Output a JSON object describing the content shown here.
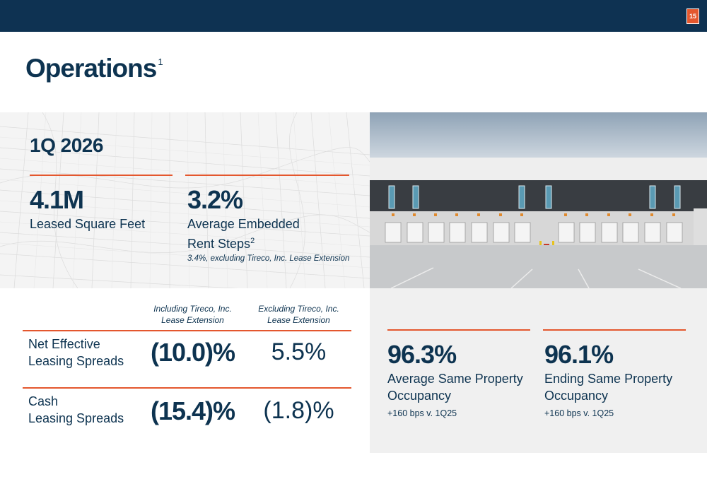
{
  "header": {
    "page_number": "15"
  },
  "title": {
    "text": "Operations",
    "footnote": "1"
  },
  "quarter": "1Q 2026",
  "kpis": [
    {
      "value": "4.1M",
      "label": "Leased Square Feet"
    },
    {
      "value": "3.2%",
      "label_line1": "Average Embedded",
      "label_line2": "Rent Steps",
      "footnote": "2",
      "note": "3.4%, excluding Tireco, Inc. Lease Extension"
    }
  ],
  "spreads": {
    "columns": [
      {
        "line1": "Including Tireco, Inc.",
        "line2": "Lease Extension"
      },
      {
        "line1": "Excluding Tireco, Inc.",
        "line2": "Lease Extension"
      }
    ],
    "rows": [
      {
        "label_line1": "Net Effective",
        "label_line2": "Leasing Spreads",
        "including": "(10.0)%",
        "excluding": "5.5%"
      },
      {
        "label_line1": "Cash",
        "label_line2": "Leasing Spreads",
        "including": "(15.4)%",
        "excluding": "(1.8)%"
      }
    ]
  },
  "occupancy": [
    {
      "value": "96.3%",
      "label_line1": "Average Same Property",
      "label_line2": "Occupancy",
      "note": "+160 bps v. 1Q25"
    },
    {
      "value": "96.1%",
      "label_line1": "Ending Same Property",
      "label_line2": "Occupancy",
      "note": "+160 bps v. 1Q25"
    }
  ],
  "colors": {
    "navy": "#0e3252",
    "accent": "#e4572e"
  }
}
